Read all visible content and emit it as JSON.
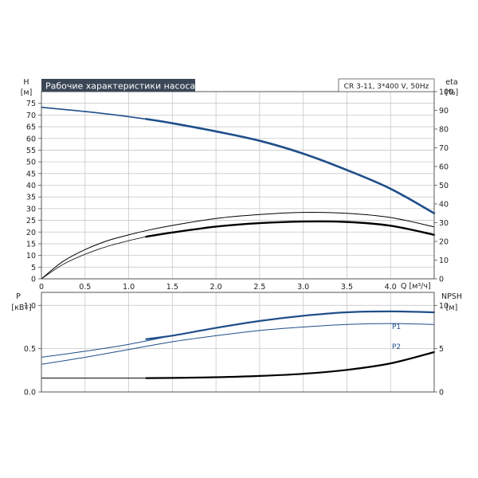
{
  "colors": {
    "blue": "#1f4e8a",
    "black": "#000000",
    "title_bg": "#3b4656",
    "grid": "#c8c8c8"
  },
  "chart_data": [
    {
      "type": "line",
      "title": "Рабочие характеристики насоса",
      "model": "CR 3-11, 3*400 V, 50Hz",
      "xlabel": "Q [м³/ч]",
      "left_axis": {
        "label_top": "H",
        "label_unit": "[м]",
        "ylim": [
          0,
          80
        ],
        "ticks": [
          "0",
          "5",
          "10",
          "15",
          "20",
          "25",
          "30",
          "35",
          "40",
          "45",
          "50",
          "55",
          "60",
          "65",
          "70",
          "75"
        ]
      },
      "right_axis": {
        "label_top": "eta",
        "label_unit": "[%]",
        "ylim": [
          0,
          100
        ],
        "ticks": [
          "0",
          "10",
          "20",
          "30",
          "40",
          "50",
          "60",
          "70",
          "80",
          "90",
          "100"
        ]
      },
      "x_ticks": [
        "0",
        "0.5",
        "1.0",
        "1.5",
        "2.0",
        "2.5",
        "3.0",
        "3.5",
        "4.0"
      ],
      "xlim": [
        0,
        4.5
      ],
      "grid": true,
      "series": [
        {
          "axis": "left",
          "color": "blue",
          "width": 1.6,
          "x": [
            0,
            0.5,
            1.0,
            1.5,
            2.0,
            2.5,
            3.0,
            3.5,
            4.0,
            4.5
          ],
          "values": [
            73.3,
            71.5,
            69.3,
            66.5,
            63.0,
            59.0,
            53.5,
            46.5,
            38.5,
            28.0
          ]
        },
        {
          "axis": "left",
          "color": "blue",
          "width": 2.6,
          "x": [
            1.2,
            1.5,
            2.0,
            2.5,
            3.0,
            3.5,
            4.0,
            4.5
          ],
          "values": [
            68.3,
            66.5,
            63.0,
            59.0,
            53.5,
            46.5,
            38.5,
            28.0
          ]
        },
        {
          "axis": "left",
          "color": "black",
          "width": 1.0,
          "x": [
            0,
            0.25,
            0.5,
            0.75,
            1.0,
            1.25,
            1.5,
            2.0,
            2.5,
            3.0,
            3.5,
            4.0,
            4.5
          ],
          "values": [
            0,
            7.5,
            12.5,
            16.2,
            18.8,
            21.0,
            22.8,
            25.8,
            27.5,
            28.4,
            28.0,
            26.2,
            22.2
          ]
        },
        {
          "axis": "left",
          "color": "black",
          "width": 2.4,
          "x": [
            1.2,
            1.5,
            2.0,
            2.5,
            3.0,
            3.5,
            4.0,
            4.5
          ],
          "values": [
            18.0,
            19.8,
            22.3,
            23.8,
            24.5,
            24.3,
            22.7,
            18.8
          ]
        },
        {
          "axis": "left",
          "color": "black",
          "width": 0.8,
          "x": [
            0,
            0.25,
            0.5,
            0.75,
            1.0,
            1.2
          ],
          "values": [
            0,
            6.2,
            10.5,
            13.8,
            16.3,
            18.0
          ]
        }
      ]
    },
    {
      "type": "line",
      "xlabel": "Q [м³/ч]",
      "left_axis": {
        "label_top": "P",
        "label_unit": "[кВт]",
        "ylim": [
          0,
          1.15
        ],
        "ticks": [
          "0.0",
          "0.5",
          "1.0"
        ]
      },
      "right_axis": {
        "label_top": "NPSH",
        "label_unit": "[м]",
        "ylim": [
          0,
          11.5
        ],
        "ticks": [
          "0",
          "5",
          "10"
        ]
      },
      "x_ticks": [
        "0",
        "0.5",
        "1.0",
        "1.5",
        "2.0",
        "2.5",
        "3.0",
        "3.5",
        "4.0"
      ],
      "xlim": [
        0,
        4.5
      ],
      "grid": true,
      "series": [
        {
          "name": "P1",
          "axis": "left",
          "color": "blue",
          "width": 1.0,
          "x": [
            0,
            0.5,
            1.0,
            1.5,
            2.0,
            2.5,
            3.0,
            3.5,
            4.0,
            4.5
          ],
          "values": [
            0.4,
            0.47,
            0.55,
            0.65,
            0.74,
            0.82,
            0.88,
            0.92,
            0.93,
            0.92
          ]
        },
        {
          "name": "P1",
          "axis": "left",
          "color": "blue",
          "width": 2.2,
          "x": [
            1.2,
            1.5,
            2.0,
            2.5,
            3.0,
            3.5,
            4.0,
            4.5
          ],
          "values": [
            0.61,
            0.65,
            0.74,
            0.82,
            0.88,
            0.92,
            0.93,
            0.92
          ]
        },
        {
          "name": "P2",
          "axis": "left",
          "color": "blue",
          "width": 1.0,
          "x": [
            0,
            0.5,
            1.0,
            1.5,
            2.0,
            2.5,
            3.0,
            3.5,
            4.0,
            4.5
          ],
          "values": [
            0.32,
            0.4,
            0.49,
            0.58,
            0.65,
            0.71,
            0.75,
            0.78,
            0.79,
            0.78
          ]
        },
        {
          "axis": "right",
          "color": "black",
          "width": 1.0,
          "x": [
            0,
            0.5,
            1.0,
            1.2
          ],
          "values": [
            1.6,
            1.6,
            1.6,
            1.6
          ]
        },
        {
          "axis": "right",
          "color": "black",
          "width": 2.2,
          "x": [
            1.2,
            1.5,
            2.0,
            2.5,
            3.0,
            3.5,
            4.0,
            4.5
          ],
          "values": [
            1.6,
            1.62,
            1.7,
            1.85,
            2.1,
            2.55,
            3.3,
            4.6
          ]
        }
      ],
      "legend_labels": [
        "P1",
        "P2"
      ]
    }
  ]
}
